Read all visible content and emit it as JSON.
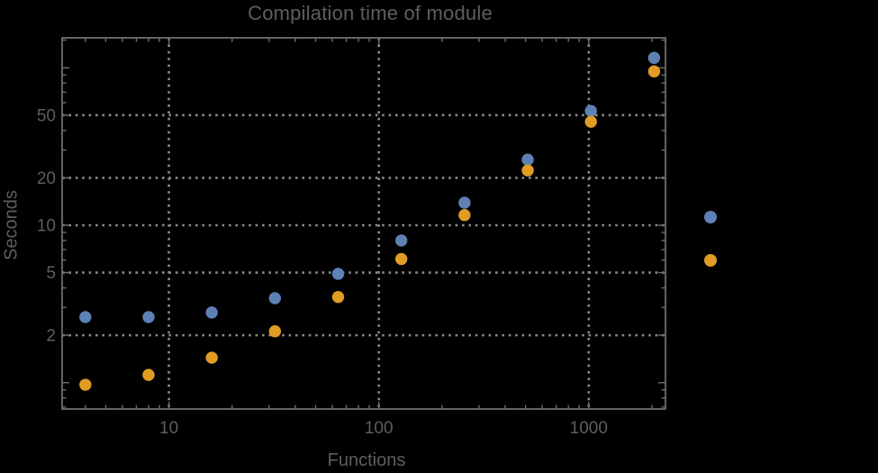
{
  "chart_data": {
    "type": "scatter",
    "title": "Compilation time of module",
    "xlabel": "Functions",
    "ylabel": "Seconds",
    "xscale": "log",
    "yscale": "log",
    "xlim": [
      3.1,
      2320
    ],
    "ylim": [
      0.68,
      155
    ],
    "grid": "dotted",
    "legend_position": "right-outside-markers-only",
    "x_major_ticks": [
      10,
      100,
      1000
    ],
    "x_major_tick_labels": [
      "10",
      "100",
      "1000"
    ],
    "x_minor_ticks": [
      4,
      5,
      6,
      7,
      8,
      9,
      20,
      30,
      40,
      50,
      60,
      70,
      80,
      90,
      200,
      300,
      400,
      500,
      600,
      700,
      800,
      900,
      2000
    ],
    "y_major_ticks": [
      2,
      5,
      10,
      20,
      50
    ],
    "y_major_tick_labels": [
      "2",
      "5",
      "10",
      "20",
      "50"
    ],
    "y_unlabeled_major_ticks": [
      1,
      100
    ],
    "y_minor_ticks": [
      0.7,
      0.8,
      0.9,
      3,
      4,
      6,
      7,
      8,
      9,
      30,
      40,
      60,
      70,
      80,
      90,
      150
    ],
    "x": [
      4,
      8,
      16,
      32,
      64,
      128,
      256,
      512,
      1024,
      2048
    ],
    "series": [
      {
        "name": "series-blue",
        "color": "#5e81b5",
        "values": [
          2.61,
          2.61,
          2.79,
          3.44,
          4.91,
          8.0,
          13.9,
          26.1,
          53.2,
          115.6
        ]
      },
      {
        "name": "series-orange",
        "color": "#e19c24",
        "values": [
          0.97,
          1.12,
          1.44,
          2.12,
          3.5,
          6.1,
          11.6,
          22.3,
          45.4,
          94.9
        ]
      }
    ],
    "legend_markers": [
      {
        "series": "series-blue",
        "color": "#5e81b5"
      },
      {
        "series": "series-orange",
        "color": "#e19c24"
      }
    ]
  },
  "colors": {
    "background": "#000000",
    "text": "#5e5e5e",
    "frame": "#6e6e6e",
    "grid": "#8a8a8a"
  }
}
